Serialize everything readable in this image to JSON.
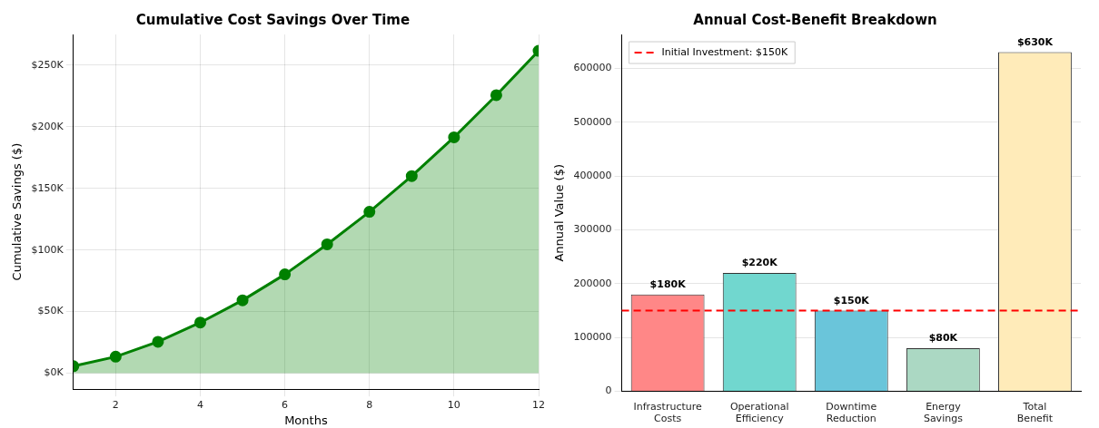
{
  "chart_data": [
    {
      "type": "area",
      "title": "Cumulative Cost Savings Over Time",
      "xlabel": "Months",
      "ylabel": "Cumulative Savings ($)",
      "x": [
        1,
        2,
        3,
        4,
        5,
        6,
        7,
        8,
        9,
        10,
        11,
        12
      ],
      "series": [
        {
          "color": "#008000",
          "values": [
            5700,
            13400,
            25500,
            41100,
            59200,
            80200,
            104600,
            131000,
            160000,
            191500,
            225700,
            261700
          ]
        }
      ],
      "xlim": [
        1,
        12
      ],
      "xticks": [
        2,
        4,
        6,
        8,
        10,
        12
      ],
      "ylim": [
        -13000,
        275000
      ],
      "yticks": [
        {
          "value": 0,
          "label": "$0K"
        },
        {
          "value": 50000,
          "label": "$50K"
        },
        {
          "value": 100000,
          "label": "$100K"
        },
        {
          "value": 150000,
          "label": "$150K"
        },
        {
          "value": 200000,
          "label": "$200K"
        },
        {
          "value": 250000,
          "label": "$250K"
        }
      ],
      "grid": true,
      "marker": "circle",
      "line_style": "solid"
    },
    {
      "type": "bar",
      "title": "Annual Cost-Benefit Breakdown",
      "ylabel": "Annual Value ($)",
      "categories": [
        "Infrastructure Costs",
        "Operational Efficiency",
        "Downtime Reduction",
        "Energy Savings",
        "Total Benefit"
      ],
      "values": [
        180000,
        220000,
        150000,
        80000,
        630000
      ],
      "colors": [
        "#ff8787",
        "#71d7cf",
        "#6ac5da",
        "#abd8c3",
        "#ffebb9"
      ],
      "value_labels": [
        "$180K",
        "$220K",
        "$150K",
        "$80K",
        "$630K"
      ],
      "ylim": [
        0,
        663000
      ],
      "yticks": [
        0,
        100000,
        200000,
        300000,
        400000,
        500000,
        600000
      ],
      "ref_lines": [
        {
          "axis": "y",
          "value": 150000,
          "label": "Initial Investment: $150K",
          "color": "#ff0000",
          "line_style": "dashed"
        }
      ],
      "grid": "y",
      "legend": "top left"
    }
  ]
}
